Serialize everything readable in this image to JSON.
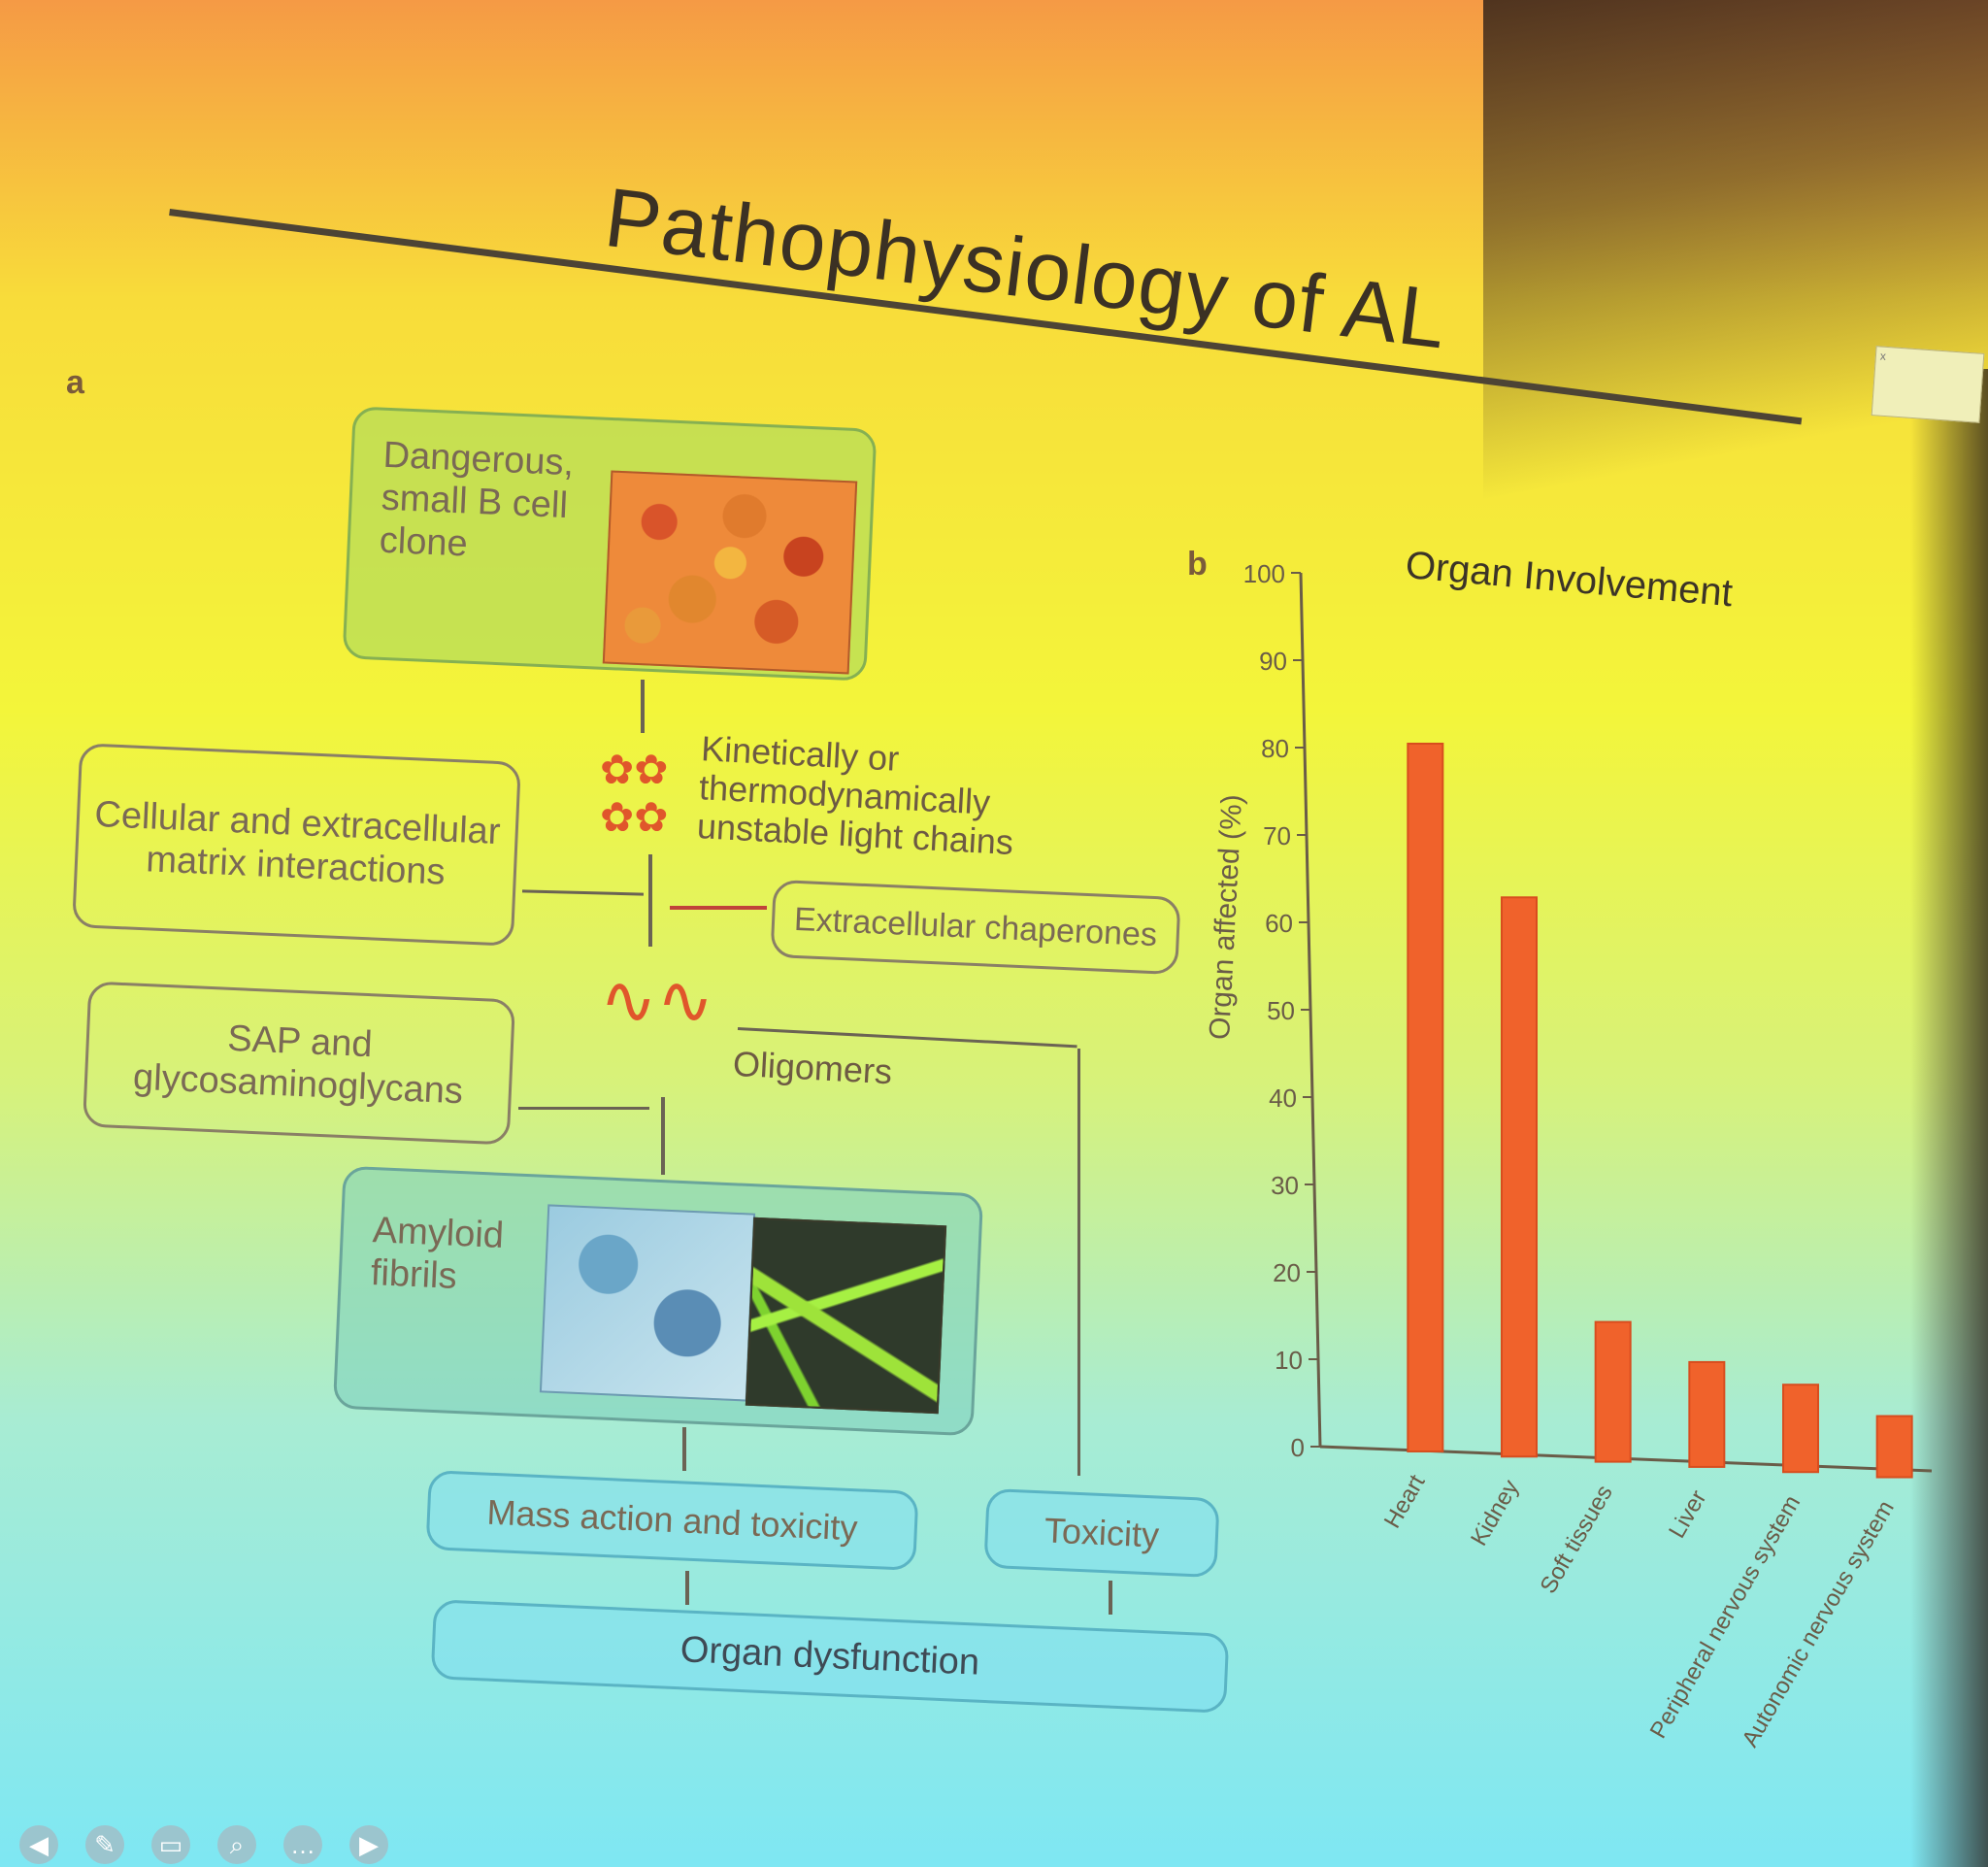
{
  "slide": {
    "title": "Pathophysiology of AL",
    "panel_a_label": "a",
    "panel_b_label": "b"
  },
  "diagram": {
    "clone_box": "Dangerous, small B cell clone",
    "light_chains_label": "Kinetically or thermodynamically unstable light chains",
    "matrix_box": "Cellular and extracellular matrix interactions",
    "chaperones_box": "Extracellular chaperones",
    "oligomers_label": "Oligomers",
    "sap_box": "SAP and glycosaminoglycans",
    "amyloid_box": "Amyloid fibrils",
    "mass_action_box": "Mass action and toxicity",
    "toxicity_box": "Toxicity",
    "organ_dysfunction_box": "Organ dysfunction"
  },
  "chart_data": {
    "type": "bar",
    "title": "Organ Involvement",
    "xlabel": "",
    "ylabel": "Organ affected (%)",
    "ylim": [
      0,
      100
    ],
    "yticks": [
      0,
      10,
      20,
      30,
      40,
      50,
      60,
      70,
      80,
      90,
      100
    ],
    "categories": [
      "Heart",
      "Kidney",
      "Soft tissues",
      "Liver",
      "Peripheral nervous system",
      "Autonomic nervous system"
    ],
    "values": [
      81,
      64,
      16,
      12,
      10,
      7
    ],
    "bar_color": "#f0622b",
    "grid": false
  },
  "toolbar": {
    "icons": [
      "back-icon",
      "pen-icon",
      "captions-icon",
      "zoom-icon",
      "more-icon",
      "forward-icon"
    ]
  },
  "corner": {
    "x": "x"
  }
}
